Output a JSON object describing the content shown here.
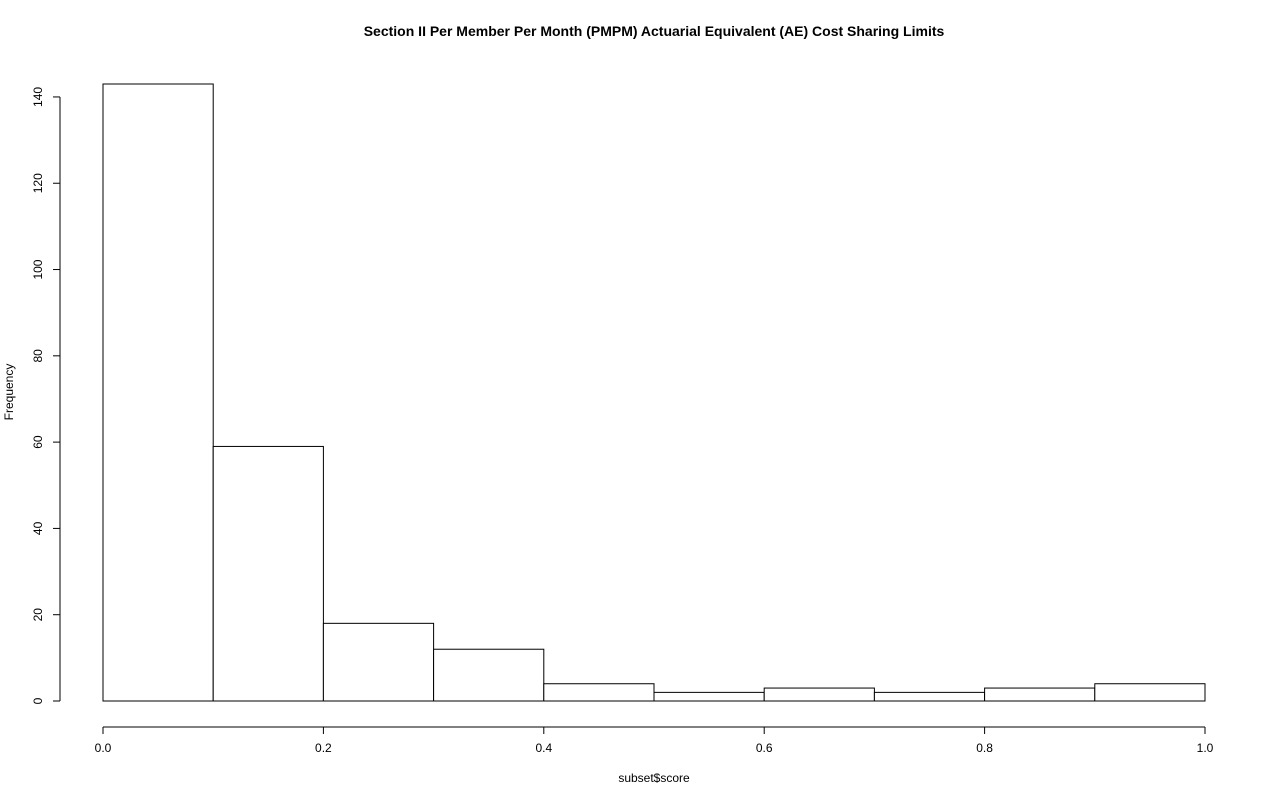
{
  "chart_data": {
    "type": "bar",
    "title": "Section II Per Member Per Month (PMPM) Actuarial Equivalent (AE) Cost Sharing Limits",
    "xlabel": "subset$score",
    "ylabel": "Frequency",
    "bins": [
      {
        "x0": 0.0,
        "x1": 0.1,
        "count": 143
      },
      {
        "x0": 0.1,
        "x1": 0.2,
        "count": 59
      },
      {
        "x0": 0.2,
        "x1": 0.3,
        "count": 18
      },
      {
        "x0": 0.3,
        "x1": 0.4,
        "count": 12
      },
      {
        "x0": 0.4,
        "x1": 0.5,
        "count": 4
      },
      {
        "x0": 0.5,
        "x1": 0.6,
        "count": 2
      },
      {
        "x0": 0.6,
        "x1": 0.7,
        "count": 3
      },
      {
        "x0": 0.7,
        "x1": 0.8,
        "count": 2
      },
      {
        "x0": 0.8,
        "x1": 0.9,
        "count": 3
      },
      {
        "x0": 0.9,
        "x1": 1.0,
        "count": 4
      }
    ],
    "xlim": [
      0.0,
      1.0
    ],
    "ylim": [
      0,
      143
    ],
    "xticks": [
      "0.0",
      "0.2",
      "0.4",
      "0.6",
      "0.8",
      "1.0"
    ],
    "yticks": [
      "0",
      "20",
      "40",
      "60",
      "80",
      "100",
      "120",
      "140"
    ],
    "grid": false,
    "colors": {
      "bar_fill": "#ffffff",
      "bar_stroke": "#000000"
    }
  }
}
